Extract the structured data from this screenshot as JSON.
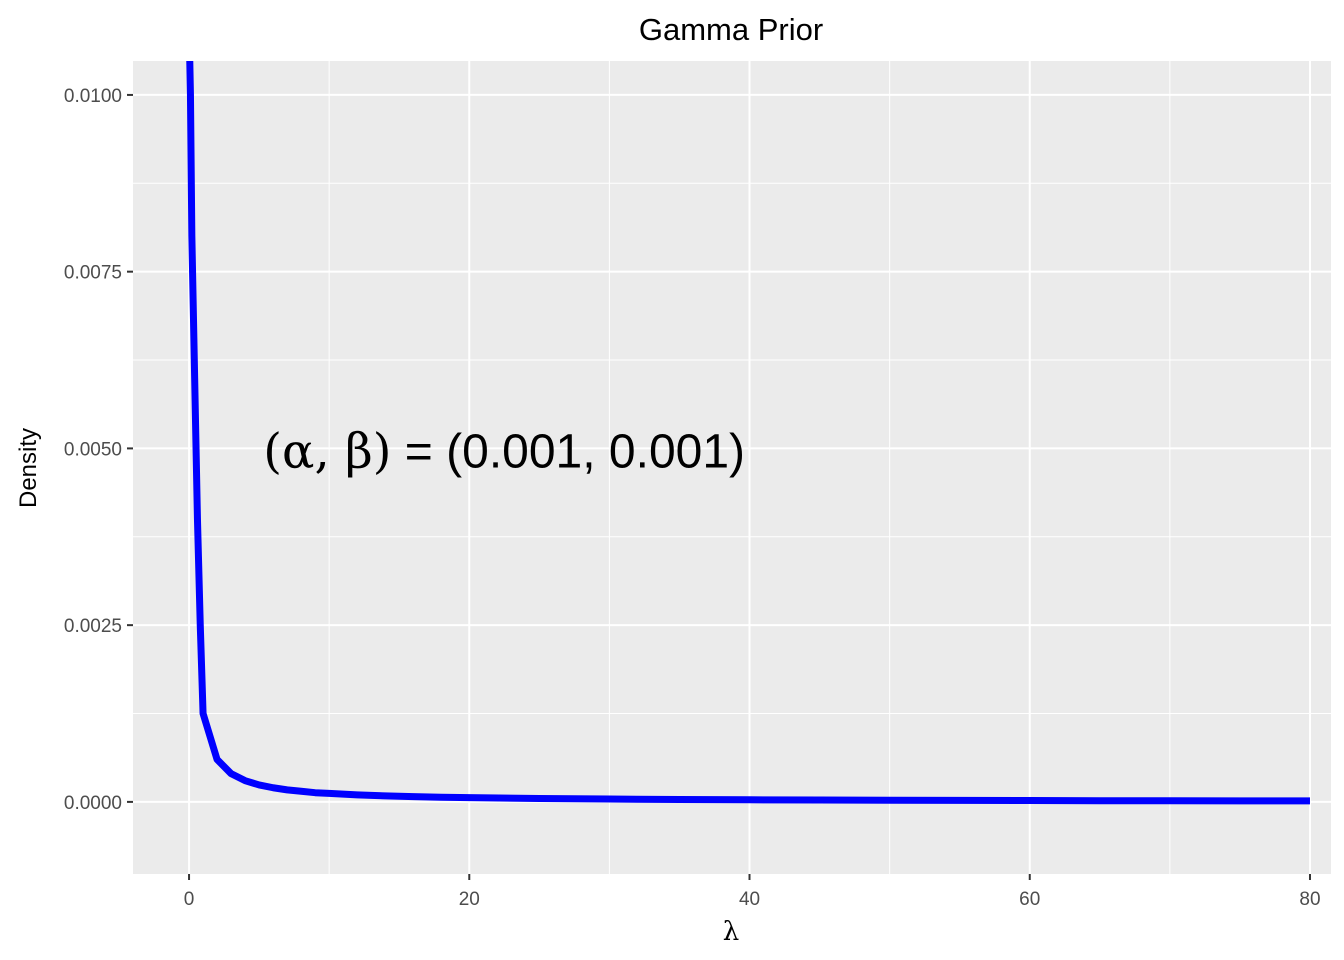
{
  "chart_data": {
    "type": "line",
    "title": "Gamma Prior",
    "xlabel": "λ",
    "ylabel": "Density",
    "xlim": [
      -4,
      81.5
    ],
    "ylim": [
      -0.00102,
      0.01048
    ],
    "x_ticks": [
      0,
      20,
      40,
      60,
      80
    ],
    "x_tick_labels": [
      "0",
      "20",
      "40",
      "60",
      "80"
    ],
    "x_minor_ticks": [
      10,
      30,
      50,
      70
    ],
    "y_ticks": [
      0.0,
      0.0025,
      0.005,
      0.0075,
      0.01
    ],
    "y_tick_labels": [
      "0.0000",
      "0.0025",
      "0.0050",
      "0.0075",
      "0.0100"
    ],
    "y_minor_ticks": [
      0.00125,
      0.00375,
      0.00625,
      0.00875
    ],
    "grid": true,
    "panel_background": "#EBEBEB",
    "grid_color": "#FFFFFF",
    "annotation": {
      "greek_part": "(α,  β)",
      "text_part": " = (0.001, 0.001)",
      "x": 5.3,
      "y": 0.0049
    },
    "series": [
      {
        "color": "#0000FF",
        "x": [
          0,
          0.05,
          0.1,
          0.2,
          0.4,
          0.6,
          0.8,
          1.0,
          2.0,
          3.0,
          4.0,
          5.0,
          6.0,
          7.0,
          8.0,
          9.0,
          10,
          12,
          14,
          16,
          18,
          20,
          25,
          30,
          35,
          40,
          45,
          50,
          55,
          60,
          65,
          70,
          75,
          80
        ],
        "y": [
          0.0105,
          0.0105,
          0.01,
          0.008,
          0.006,
          0.004,
          0.0025,
          0.00125,
          0.0006,
          0.0004,
          0.0003,
          0.00024,
          0.0002,
          0.00017,
          0.00015,
          0.00013,
          0.00012,
          0.0001,
          8.5e-05,
          7.5e-05,
          6.5e-05,
          6e-05,
          4.8e-05,
          4e-05,
          3.4e-05,
          3e-05,
          2.6e-05,
          2.4e-05,
          2.1e-05,
          1.9e-05,
          1.7e-05,
          1.6e-05,
          1.5e-05,
          1.4e-05
        ]
      }
    ]
  }
}
